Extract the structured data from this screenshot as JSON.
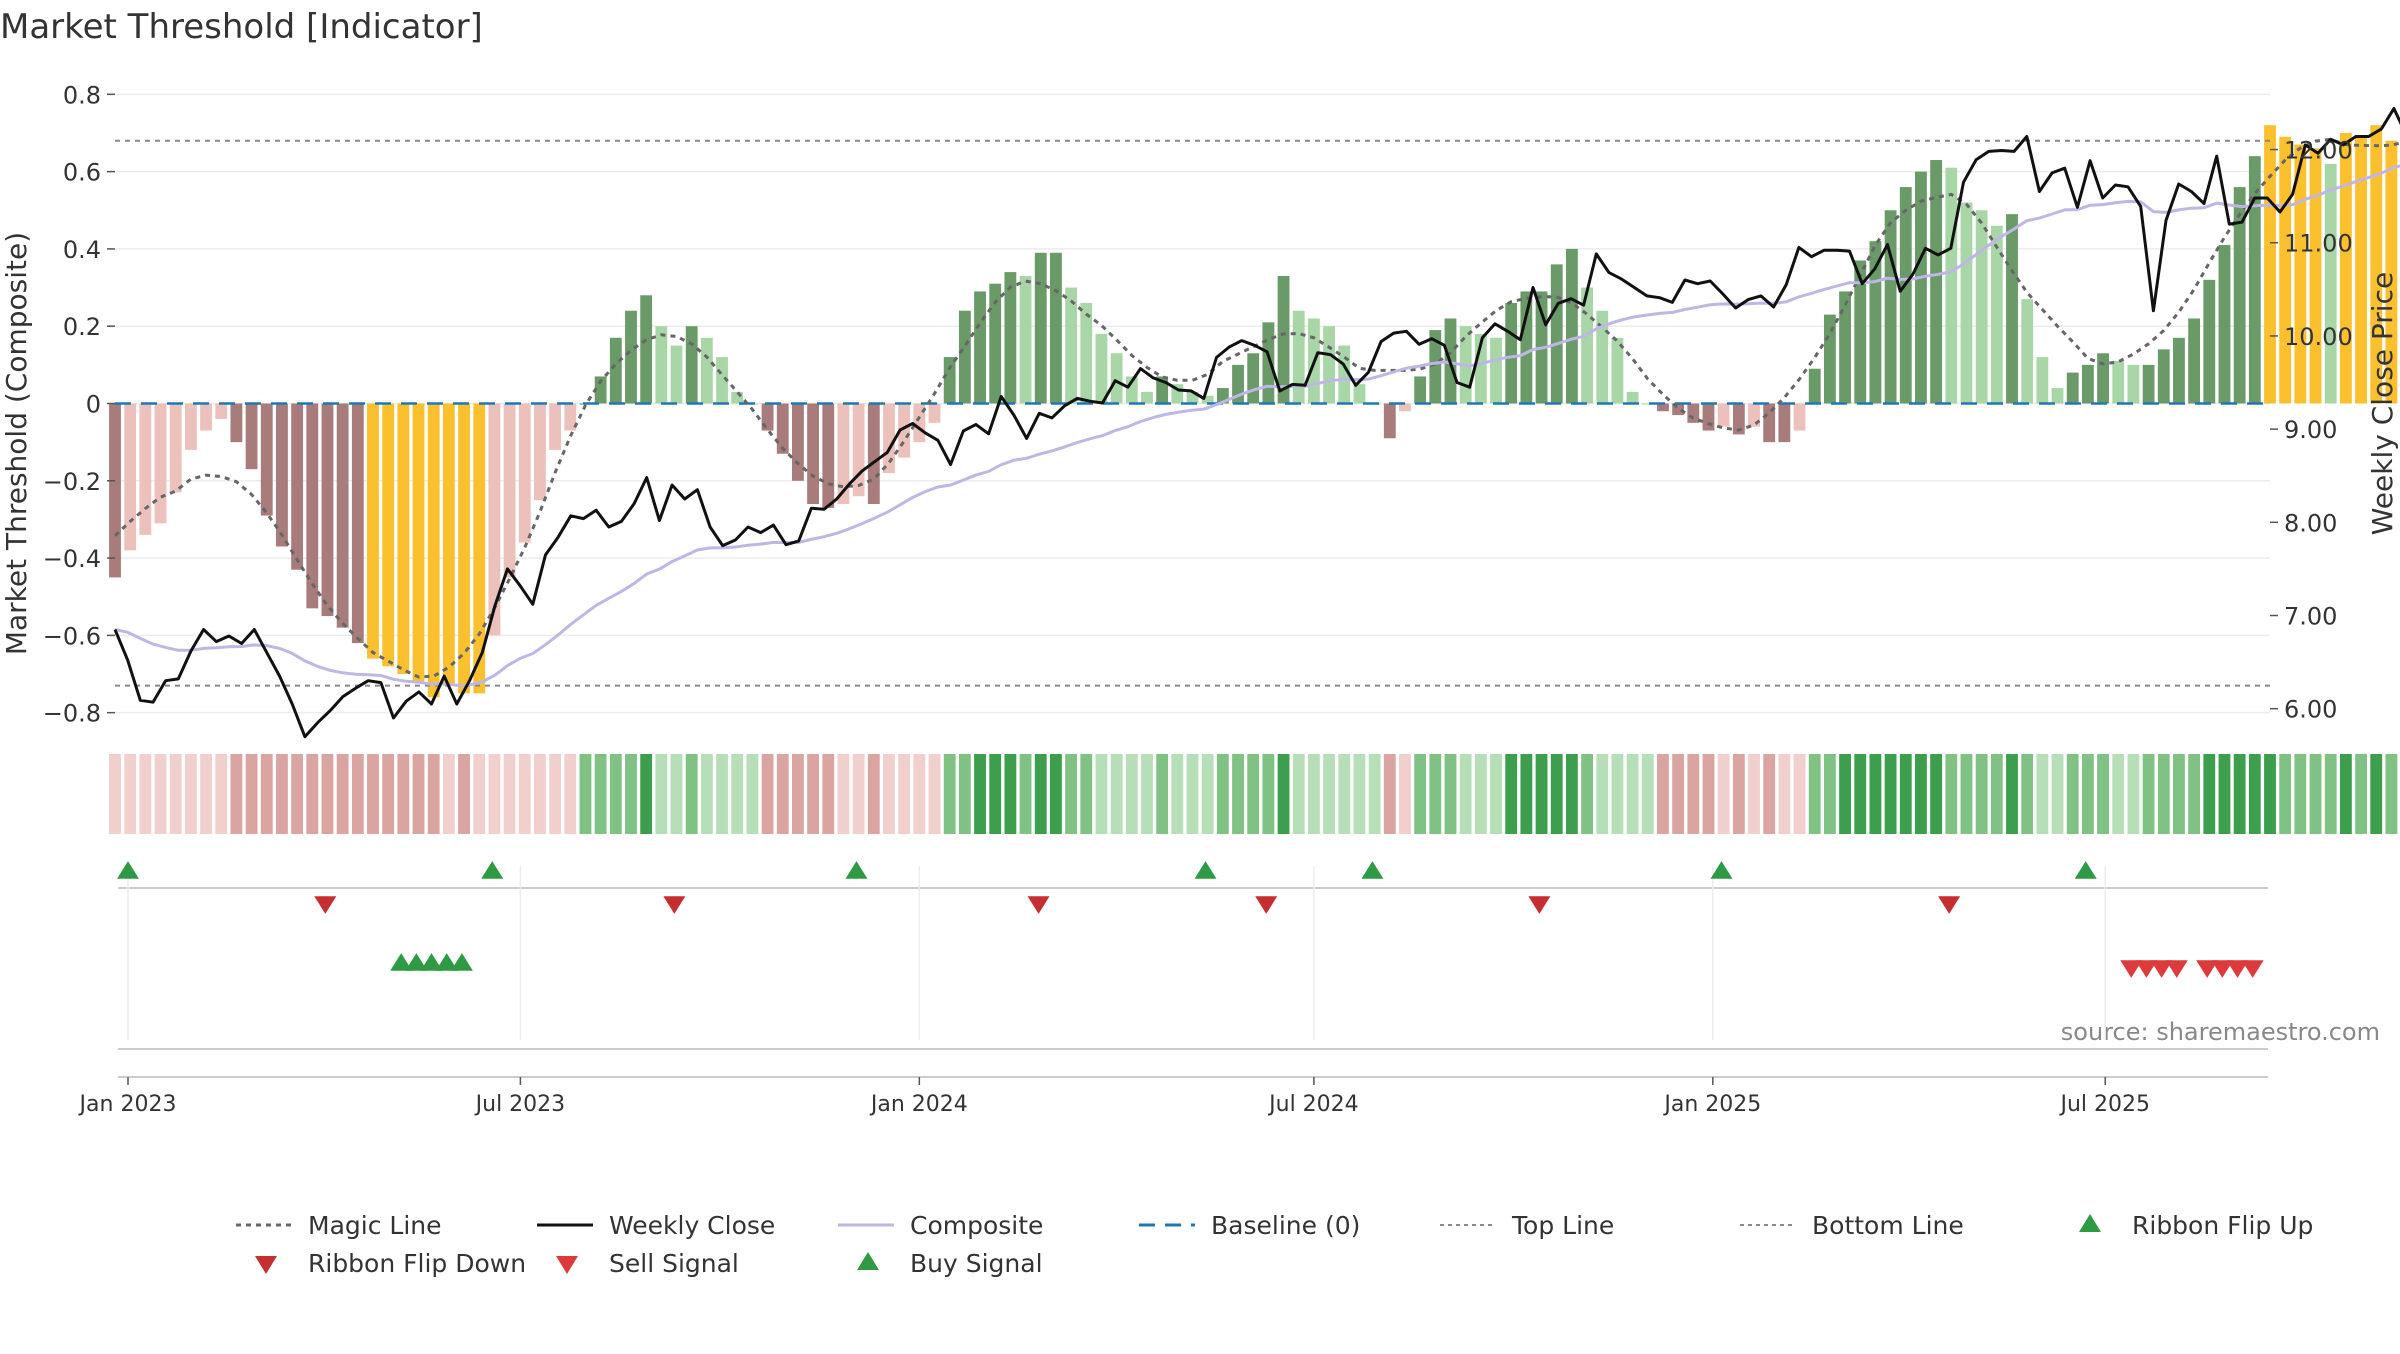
{
  "title": "Market Threshold [Indicator]",
  "source": "source: sharemaestro.com",
  "colors": {
    "bar_pos_light": "#a9d6a6",
    "bar_pos_dark": "#6a9a68",
    "bar_neg_light": "#ecc0bb",
    "bar_neg_dark": "#a77c7a",
    "bar_extreme": "#fbc02d",
    "weekly_close": "#111111",
    "composite": "#bfb6e6",
    "magic_line": "#666666",
    "baseline": "#1f77b4",
    "ribbon_green_dark": "#3d9e4e",
    "ribbon_green_mid": "#80c184",
    "ribbon_green_light": "#b6dfb8",
    "ribbon_red_mid": "#daa4a0",
    "ribbon_red_light": "#f0cfcc",
    "signal_green": "#2e9a44",
    "signal_red": "#d33a3a"
  },
  "chart_data": {
    "type": "bar",
    "title": "Market Threshold [Indicator]",
    "ylabel_left": "Market Threshold (Composite)",
    "ylabel_right": "Weekly Close Price",
    "ylim_left": [
      -0.85,
      0.85
    ],
    "ylim_right": [
      5.75,
      12.8
    ],
    "yticks_left": [
      {
        "v": 0.8,
        "label": "0.8"
      },
      {
        "v": 0.6,
        "label": "0.6"
      },
      {
        "v": 0.4,
        "label": "0.4"
      },
      {
        "v": 0.2,
        "label": "0.2"
      },
      {
        "v": 0,
        "label": "0"
      },
      {
        "v": -0.2,
        "label": "−0.2"
      },
      {
        "v": -0.4,
        "label": "−0.4"
      },
      {
        "v": -0.6,
        "label": "−0.6"
      },
      {
        "v": -0.8,
        "label": "−0.8"
      }
    ],
    "yticks_right": [
      {
        "v": 12,
        "label": "12.00"
      },
      {
        "v": 11,
        "label": "11.00"
      },
      {
        "v": 10,
        "label": "10.00"
      },
      {
        "v": 9,
        "label": "9.00"
      },
      {
        "v": 8,
        "label": "8.00"
      },
      {
        "v": 7,
        "label": "7.00"
      },
      {
        "v": 6,
        "label": "6.00"
      }
    ],
    "xlim": [
      "2022-12-26",
      "2025-09-15"
    ],
    "xticks": [
      {
        "date": "2023-01-01",
        "label": "Jan 2023"
      },
      {
        "date": "2023-07-01",
        "label": "Jul 2023"
      },
      {
        "date": "2024-01-01",
        "label": "Jan 2024"
      },
      {
        "date": "2024-07-01",
        "label": "Jul 2024"
      },
      {
        "date": "2025-01-01",
        "label": "Jan 2025"
      },
      {
        "date": "2025-07-01",
        "label": "Jul 2025"
      }
    ],
    "start_date": "2022-12-26",
    "week_interval_days": 7,
    "top_line": 0.68,
    "bottom_line": -0.73,
    "baseline": 0,
    "composite_bars": [
      -0.45,
      -0.38,
      -0.34,
      -0.31,
      -0.23,
      -0.12,
      -0.07,
      -0.04,
      -0.1,
      -0.17,
      -0.29,
      -0.37,
      -0.43,
      -0.53,
      -0.55,
      -0.58,
      -0.62,
      -0.66,
      -0.68,
      -0.7,
      -0.72,
      -0.76,
      -0.73,
      -0.75,
      -0.75,
      -0.6,
      -0.45,
      -0.36,
      -0.25,
      -0.12,
      -0.07,
      0,
      0.07,
      0.17,
      0.24,
      0.28,
      0.2,
      0.15,
      0.2,
      0.17,
      0.12,
      0.03,
      0,
      -0.07,
      -0.13,
      -0.2,
      -0.26,
      -0.27,
      -0.26,
      -0.24,
      -0.26,
      -0.18,
      -0.14,
      -0.1,
      -0.05,
      0.12,
      0.24,
      0.29,
      0.31,
      0.34,
      0.33,
      0.39,
      0.39,
      0.3,
      0.26,
      0.18,
      0.13,
      0.07,
      0.03,
      0.07,
      0.05,
      0.03,
      0.02,
      0.04,
      0.1,
      0.13,
      0.21,
      0.33,
      0.24,
      0.22,
      0.2,
      0.15,
      0.05,
      0,
      -0.09,
      -0.02,
      0.07,
      0.19,
      0.22,
      0.2,
      0.18,
      0.17,
      0.26,
      0.29,
      0.29,
      0.36,
      0.4,
      0.3,
      0.24,
      0.17,
      0.03,
      0,
      -0.02,
      -0.03,
      -0.05,
      -0.07,
      -0.06,
      -0.08,
      -0.06,
      -0.1,
      -0.1,
      -0.07,
      0.09,
      0.23,
      0.29,
      0.37,
      0.42,
      0.5,
      0.56,
      0.6,
      0.63,
      0.61,
      0.52,
      0.5,
      0.46,
      0.49,
      0.27,
      0.12,
      0.04,
      0.08,
      0.1,
      0.13,
      0.11,
      0.1,
      0.1,
      0.14,
      0.17,
      0.22,
      0.32,
      0.41,
      0.56,
      0.64,
      0.72,
      0.69,
      0.67,
      0.66,
      0.62,
      0.7,
      0.69,
      0.72,
      0.68,
      0.6
    ],
    "weekly_close": [
      6.85,
      6.52,
      6.09,
      6.07,
      6.3,
      6.32,
      6.62,
      6.85,
      6.72,
      6.78,
      6.7,
      6.85,
      6.6,
      6.35,
      6.05,
      5.7,
      5.85,
      5.98,
      6.13,
      6.22,
      6.3,
      6.28,
      5.9,
      6.08,
      6.18,
      6.05,
      6.35,
      6.05,
      6.3,
      6.6,
      7.1,
      7.5,
      7.32,
      7.12,
      7.65,
      7.84,
      8.07,
      8.04,
      8.13,
      7.95,
      8.01,
      8.2,
      8.48,
      8.02,
      8.4,
      8.25,
      8.35,
      7.95,
      7.75,
      7.81,
      7.95,
      7.89,
      7.97,
      7.76,
      7.8,
      8.15,
      8.14,
      8.25,
      8.41,
      8.55,
      8.65,
      8.75,
      8.99,
      9.06,
      8.96,
      8.88,
      8.62,
      8.98,
      9.05,
      8.95,
      9.35,
      9.15,
      8.9,
      9.17,
      9.12,
      9.25,
      9.33,
      9.3,
      9.28,
      9.52,
      9.45,
      9.65,
      9.55,
      9.5,
      9.42,
      9.41,
      9.33,
      9.77,
      9.88,
      9.95,
      9.9,
      9.83,
      9.41,
      9.48,
      9.47,
      9.82,
      9.8,
      9.7,
      9.47,
      9.61,
      9.94,
      10.03,
      10.05,
      9.91,
      9.97,
      9.9,
      9.5,
      9.45,
      9.98,
      10.13,
      10.05,
      9.96,
      10.52,
      10.12,
      10.35,
      10.4,
      10.33,
      10.88,
      10.68,
      10.61,
      10.52,
      10.43,
      10.41,
      10.36,
      10.6,
      10.56,
      10.59,
      10.45,
      10.3,
      10.39,
      10.43,
      10.31,
      10.55,
      10.95,
      10.85,
      10.92,
      10.92,
      10.91,
      10.56,
      10.72,
      10.98,
      10.48,
      10.66,
      10.94,
      10.87,
      10.94,
      11.65,
      11.89,
      11.98,
      11.99,
      11.98,
      12.14,
      11.55,
      11.75,
      11.8,
      11.38,
      11.88,
      11.48,
      11.62,
      11.6,
      11.39,
      10.27,
      11.24,
      11.63,
      11.55,
      11.42,
      11.93,
      11.2,
      11.22,
      11.48,
      11.48,
      11.33,
      11.52,
      12.05,
      11.96,
      12.11,
      12.05,
      12.14,
      12.14,
      12.22,
      12.44,
      12.15
    ],
    "ribbon_start_date": "2022-12-26",
    "signals": {
      "ribbon_flip_up": [
        "2023-01-01",
        "2023-06-18",
        "2023-12-03",
        "2024-05-12",
        "2024-07-28",
        "2025-01-05",
        "2025-06-22"
      ],
      "ribbon_flip_down": [
        "2023-04-02",
        "2023-09-10",
        "2024-02-25",
        "2024-06-09",
        "2024-10-13",
        "2025-04-20"
      ],
      "buy_signal": [
        "2023-05-07",
        "2023-05-14",
        "2023-05-21",
        "2023-05-28",
        "2023-06-04"
      ],
      "sell_signal": [
        "2025-07-13",
        "2025-07-20",
        "2025-07-27",
        "2025-08-03",
        "2025-08-17",
        "2025-08-24",
        "2025-08-31",
        "2025-09-07"
      ]
    },
    "legend_position": "bottom",
    "legend": [
      {
        "label": "Magic Line",
        "kind": "dotted",
        "color": "#666666"
      },
      {
        "label": "Weekly Close",
        "kind": "solid",
        "color": "#111111"
      },
      {
        "label": "Composite",
        "kind": "solid",
        "color": "#bfb6e6"
      },
      {
        "label": "Baseline (0)",
        "kind": "dashed",
        "color": "#1f77b4"
      },
      {
        "label": "Top Line",
        "kind": "dotted-thin",
        "color": "#888888"
      },
      {
        "label": "Bottom Line",
        "kind": "dotted-thin",
        "color": "#888888"
      },
      {
        "label": "Ribbon Flip Up",
        "kind": "tri-up",
        "color": "#2e9a44"
      },
      {
        "label": "Ribbon Flip Down",
        "kind": "tri-down",
        "color": "#c62f2f"
      },
      {
        "label": "Sell Signal",
        "kind": "tri-down",
        "color": "#dd3b3b"
      },
      {
        "label": "Buy Signal",
        "kind": "tri-up",
        "color": "#2e9a44"
      }
    ]
  }
}
